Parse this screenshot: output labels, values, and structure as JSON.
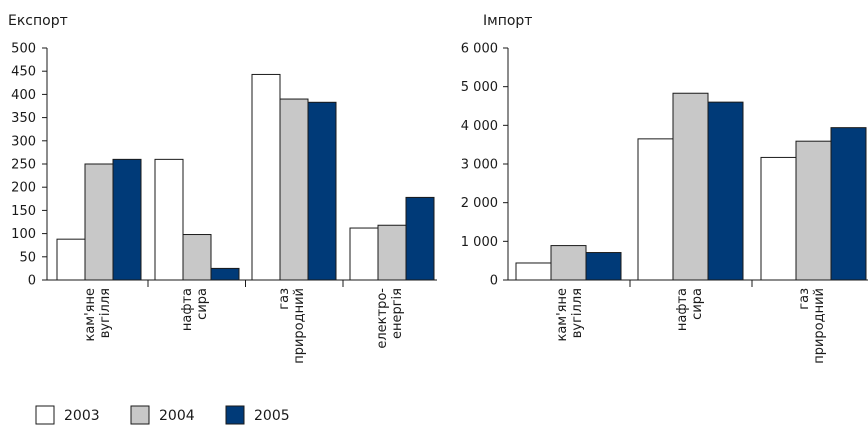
{
  "chart_data": [
    {
      "type": "bar",
      "title": "Експорт",
      "categories": [
        [
          "кам'яне",
          "вугілля"
        ],
        [
          "нафта",
          "сира"
        ],
        [
          "газ",
          "природний"
        ],
        [
          "електро-",
          "енергія"
        ]
      ],
      "series": [
        {
          "name": "2003",
          "values": [
            88,
            260,
            443,
            112
          ]
        },
        {
          "name": "2004",
          "values": [
            250,
            98,
            390,
            118
          ]
        },
        {
          "name": "2005",
          "values": [
            260,
            25,
            383,
            178
          ]
        }
      ],
      "ylim": [
        0,
        500
      ],
      "yticks": [
        0,
        50,
        100,
        150,
        200,
        250,
        300,
        350,
        400,
        450,
        500
      ],
      "ytick_labels": [
        "0",
        "50",
        "100",
        "150",
        "200",
        "250",
        "300",
        "350",
        "400",
        "450",
        "500"
      ],
      "xlabel": "",
      "ylabel": "",
      "grid": false
    },
    {
      "type": "bar",
      "title": "Імпорт",
      "categories": [
        [
          "кам'яне",
          "вугілля"
        ],
        [
          "нафта",
          "сира"
        ],
        [
          "газ",
          "природний"
        ]
      ],
      "series": [
        {
          "name": "2003",
          "values": [
            440,
            3650,
            3170
          ]
        },
        {
          "name": "2004",
          "values": [
            890,
            4830,
            3590
          ]
        },
        {
          "name": "2005",
          "values": [
            710,
            4600,
            3940
          ]
        }
      ],
      "ylim": [
        0,
        6000
      ],
      "yticks": [
        0,
        1000,
        2000,
        3000,
        4000,
        5000,
        6000
      ],
      "ytick_labels": [
        "0",
        "1 000",
        "2 000",
        "3 000",
        "4 000",
        "5 000",
        "6 000"
      ],
      "xlabel": "",
      "ylabel": "",
      "grid": false
    }
  ],
  "legend": {
    "position": "bottom-left",
    "items": [
      "2003",
      "2004",
      "2005"
    ]
  },
  "colors": {
    "2003": "#ffffff",
    "2004": "#c8c8c8",
    "2005": "#003a78",
    "stroke": "#1a1a1a"
  }
}
